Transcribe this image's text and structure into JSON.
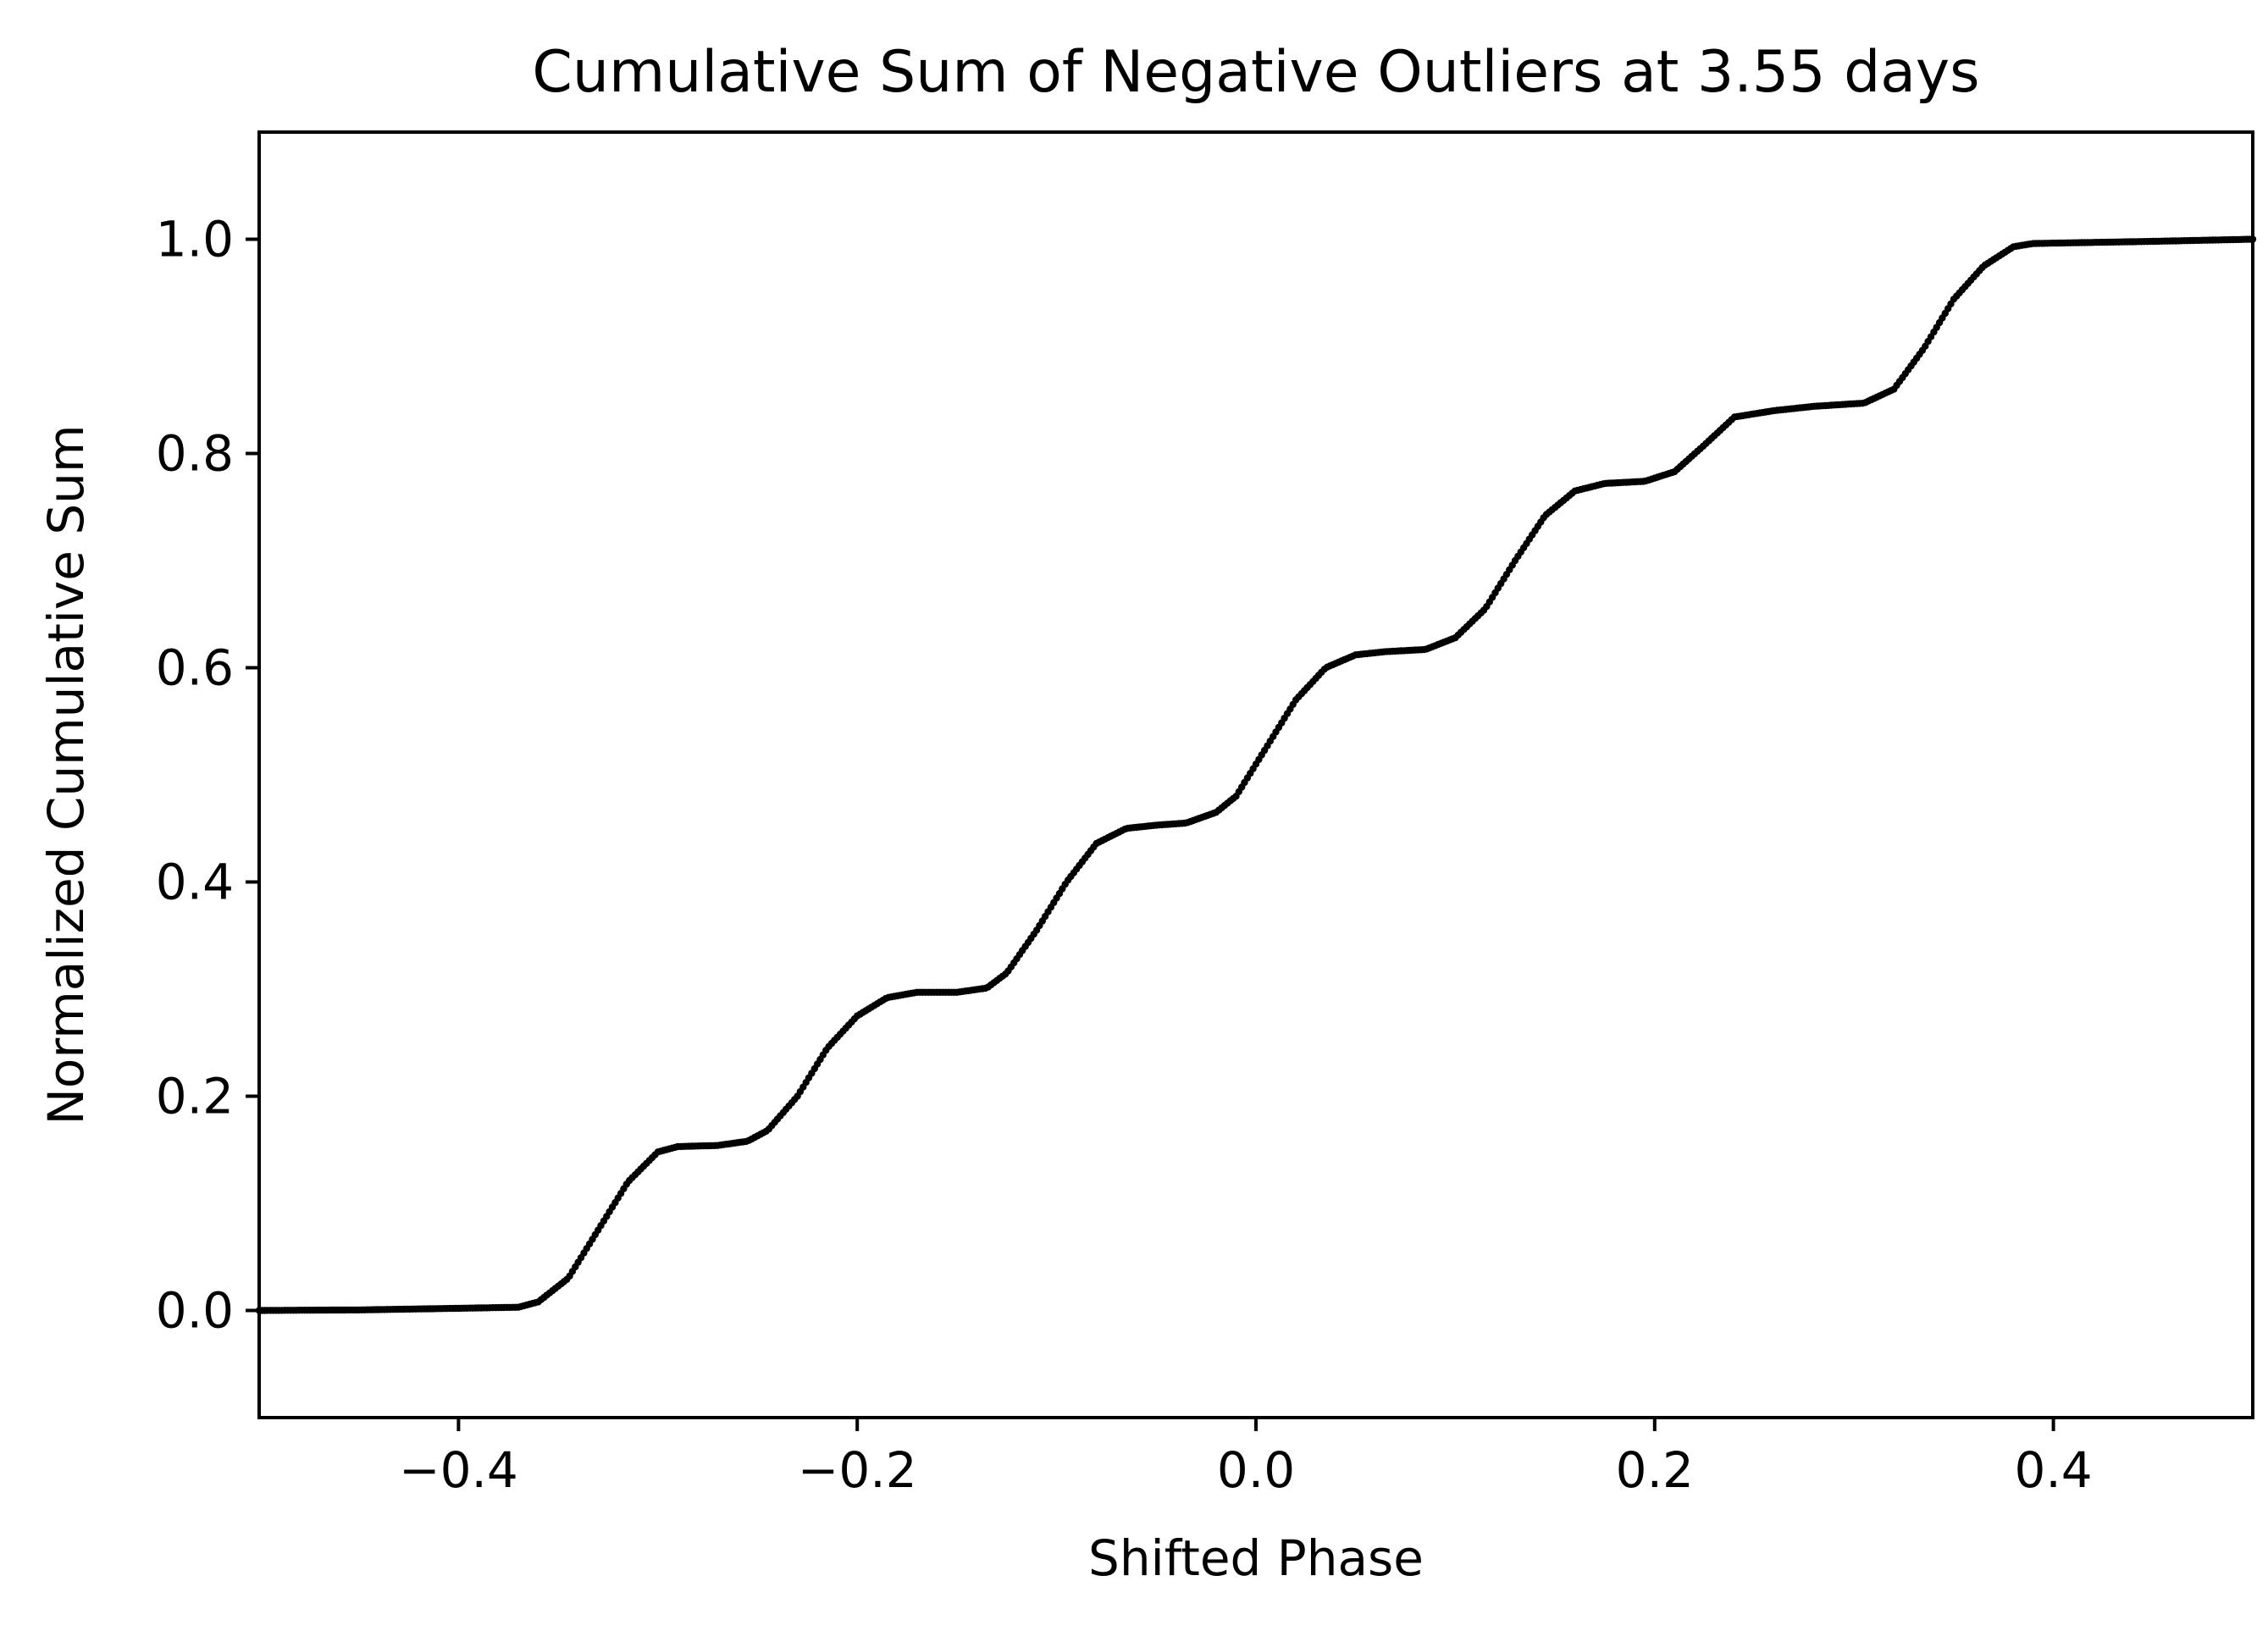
{
  "chart_data": {
    "type": "scatter",
    "title": "Cumulative Sum of Negative Outliers at 3.55 days",
    "xlabel": "Shifted Phase",
    "ylabel": "Normalized Cumulative Sum",
    "xlim": [
      -0.5,
      0.5
    ],
    "ylim": [
      -0.1,
      1.1
    ],
    "xticks": [
      -0.4,
      -0.2,
      0.0,
      0.2,
      0.4
    ],
    "xtick_labels": [
      "−0.4",
      "−0.2",
      "0.0",
      "0.2",
      "0.4"
    ],
    "yticks": [
      0.0,
      0.2,
      0.4,
      0.6,
      0.8,
      1.0
    ],
    "ytick_labels": [
      "0.0",
      "0.2",
      "0.4",
      "0.6",
      "0.8",
      "1.0"
    ],
    "grid": false,
    "marker_color": "#000000",
    "series": [
      {
        "name": "",
        "points": [
          [
            -0.5,
            0.0
          ],
          [
            -0.45,
            0.0005
          ],
          [
            -0.4,
            0.002
          ],
          [
            -0.37,
            0.003
          ],
          [
            -0.36,
            0.008
          ],
          [
            -0.345,
            0.03
          ],
          [
            -0.33,
            0.075
          ],
          [
            -0.315,
            0.12
          ],
          [
            -0.3,
            0.148
          ],
          [
            -0.29,
            0.153
          ],
          [
            -0.27,
            0.154
          ],
          [
            -0.255,
            0.158
          ],
          [
            -0.245,
            0.168
          ],
          [
            -0.23,
            0.2
          ],
          [
            -0.215,
            0.245
          ],
          [
            -0.2,
            0.275
          ],
          [
            -0.185,
            0.292
          ],
          [
            -0.17,
            0.297
          ],
          [
            -0.15,
            0.297
          ],
          [
            -0.135,
            0.301
          ],
          [
            -0.125,
            0.315
          ],
          [
            -0.11,
            0.355
          ],
          [
            -0.095,
            0.4
          ],
          [
            -0.08,
            0.436
          ],
          [
            -0.065,
            0.45
          ],
          [
            -0.05,
            0.453
          ],
          [
            -0.035,
            0.455
          ],
          [
            -0.02,
            0.465
          ],
          [
            -0.01,
            0.48
          ],
          [
            0.005,
            0.525
          ],
          [
            0.02,
            0.57
          ],
          [
            0.035,
            0.6
          ],
          [
            0.05,
            0.612
          ],
          [
            0.065,
            0.615
          ],
          [
            0.085,
            0.617
          ],
          [
            0.1,
            0.628
          ],
          [
            0.115,
            0.655
          ],
          [
            0.13,
            0.7
          ],
          [
            0.145,
            0.742
          ],
          [
            0.16,
            0.765
          ],
          [
            0.175,
            0.772
          ],
          [
            0.195,
            0.774
          ],
          [
            0.21,
            0.783
          ],
          [
            0.225,
            0.808
          ],
          [
            0.24,
            0.834
          ],
          [
            0.26,
            0.84
          ],
          [
            0.28,
            0.844
          ],
          [
            0.305,
            0.847
          ],
          [
            0.32,
            0.86
          ],
          [
            0.335,
            0.898
          ],
          [
            0.35,
            0.944
          ],
          [
            0.365,
            0.975
          ],
          [
            0.38,
            0.993
          ],
          [
            0.39,
            0.996
          ],
          [
            0.45,
            0.998
          ],
          [
            0.5,
            1.0
          ]
        ]
      }
    ]
  }
}
